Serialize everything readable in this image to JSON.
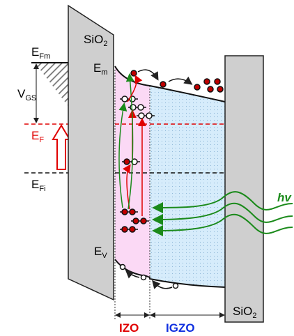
{
  "labels": {
    "sio2_left": {
      "text": "SiO",
      "sub": "2"
    },
    "e_fm": {
      "text": "E",
      "sub": "Fm"
    },
    "v_gs": {
      "text": "V",
      "sub": "GS"
    },
    "e_m": {
      "text": "E",
      "sub": "m"
    },
    "e_f": {
      "text": "E",
      "sub": "F"
    },
    "e_fi": {
      "text": "E",
      "sub": "Fi"
    },
    "photon": {
      "text": "hv"
    },
    "e_v": {
      "text": "E",
      "sub": "V"
    },
    "sio2_right": {
      "text": "SiO",
      "sub": "2"
    },
    "izo": {
      "text": "IZO"
    },
    "igzo": {
      "text": "IGZO"
    }
  }
}
